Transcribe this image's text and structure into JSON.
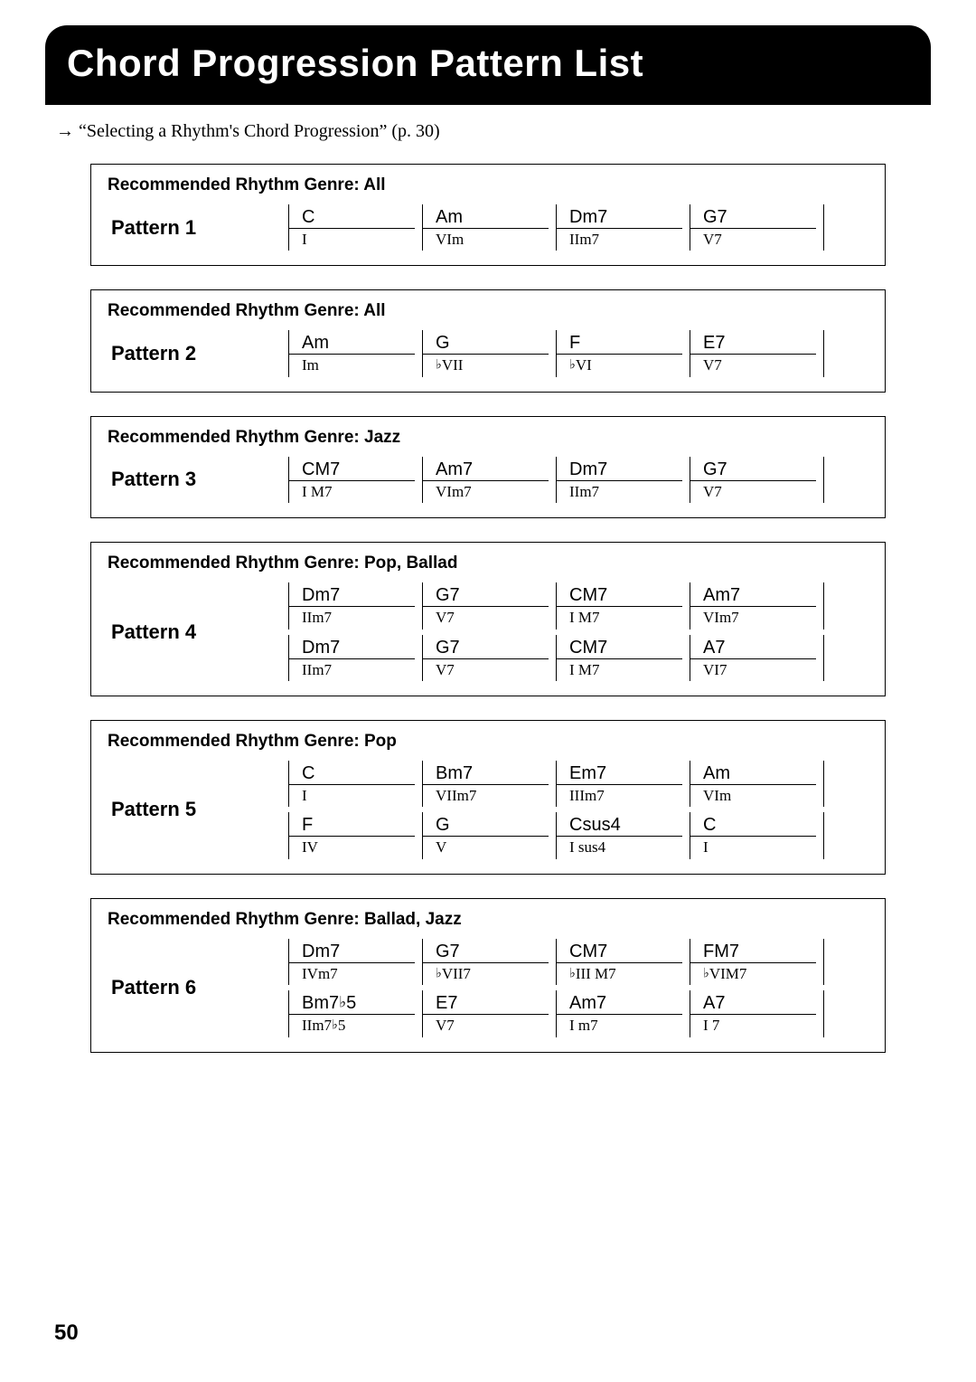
{
  "title": "Chord Progression Pattern List",
  "refArrow": "→",
  "refText": "“Selecting a Rhythm's Chord Progression” (p. 30)",
  "pageNumber": "50",
  "genreLabel": "Recommended Rhythm Genre: ",
  "patterns": [
    {
      "name": "Pattern 1",
      "genre": "All",
      "rows": [
        [
          {
            "top": "C",
            "bot": "I"
          },
          {
            "top": "Am",
            "bot": "VIm"
          },
          {
            "top": "Dm7",
            "bot": "IIm7"
          },
          {
            "top": "G7",
            "bot": "V7"
          }
        ]
      ]
    },
    {
      "name": "Pattern 2",
      "genre": "All",
      "rows": [
        [
          {
            "top": "Am",
            "bot": "Im"
          },
          {
            "top": "G",
            "bot": "♭VII"
          },
          {
            "top": "F",
            "bot": "♭VI"
          },
          {
            "top": "E7",
            "bot": "V7"
          }
        ]
      ]
    },
    {
      "name": "Pattern 3",
      "genre": "Jazz",
      "rows": [
        [
          {
            "top": "CM7",
            "bot": "I M7"
          },
          {
            "top": "Am7",
            "bot": "VIm7"
          },
          {
            "top": "Dm7",
            "bot": "IIm7"
          },
          {
            "top": "G7",
            "bot": "V7"
          }
        ]
      ]
    },
    {
      "name": "Pattern 4",
      "genre": "Pop, Ballad",
      "rows": [
        [
          {
            "top": "Dm7",
            "bot": "IIm7"
          },
          {
            "top": "G7",
            "bot": "V7"
          },
          {
            "top": "CM7",
            "bot": "I M7"
          },
          {
            "top": "Am7",
            "bot": "VIm7"
          }
        ],
        [
          {
            "top": "Dm7",
            "bot": "IIm7"
          },
          {
            "top": "G7",
            "bot": "V7"
          },
          {
            "top": "CM7",
            "bot": "I M7"
          },
          {
            "top": "A7",
            "bot": "VI7"
          }
        ]
      ]
    },
    {
      "name": "Pattern 5",
      "genre": "Pop",
      "rows": [
        [
          {
            "top": "C",
            "bot": "I"
          },
          {
            "top": "Bm7",
            "bot": "VIIm7"
          },
          {
            "top": "Em7",
            "bot": "IIIm7"
          },
          {
            "top": "Am",
            "bot": "VIm"
          }
        ],
        [
          {
            "top": "F",
            "bot": "IV"
          },
          {
            "top": "G",
            "bot": "V"
          },
          {
            "top": "Csus4",
            "bot": "I sus4"
          },
          {
            "top": "C",
            "bot": "I"
          }
        ]
      ]
    },
    {
      "name": "Pattern 6",
      "genre": "Ballad, Jazz",
      "rows": [
        [
          {
            "top": "Dm7",
            "bot": "IVm7"
          },
          {
            "top": "G7",
            "bot": "♭VII7"
          },
          {
            "top": "CM7",
            "bot": "♭III M7"
          },
          {
            "top": "FM7",
            "bot": "♭VIM7"
          }
        ],
        [
          {
            "top": "Bm7♭5",
            "bot": "IIm7♭5"
          },
          {
            "top": "E7",
            "bot": "V7"
          },
          {
            "top": "Am7",
            "bot": "I m7"
          },
          {
            "top": "A7",
            "bot": "I 7"
          }
        ]
      ]
    }
  ]
}
